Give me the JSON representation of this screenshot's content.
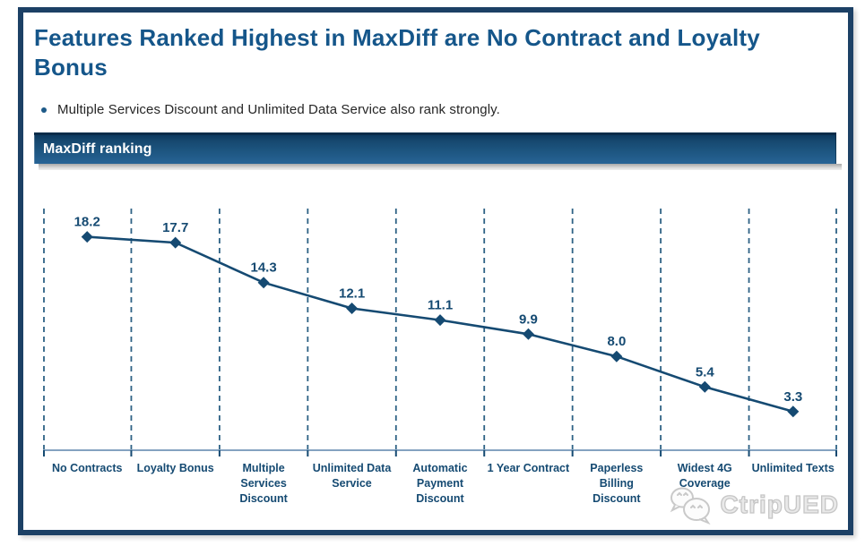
{
  "slide": {
    "title": "Features Ranked Highest in MaxDiff are No Contract and Loyalty Bonus",
    "bullet": "Multiple Services Discount and Unlimited Data Service also rank strongly.",
    "banner_label": "MaxDiff ranking"
  },
  "chart_data": {
    "type": "line",
    "title": "MaxDiff ranking",
    "categories": [
      "No Contracts",
      "Loyalty Bonus",
      "Multiple Services Discount",
      "Unlimited Data Service",
      "Automatic Payment Discount",
      "1 Year Contract",
      "Paperless Billing Discount",
      "Widest 4G Coverage",
      "Unlimited Texts"
    ],
    "values": [
      18.2,
      17.7,
      14.3,
      12.1,
      11.1,
      9.9,
      8.0,
      5.4,
      3.3
    ],
    "value_labels": [
      "18.2",
      "17.7",
      "14.3",
      "12.1",
      "11.1",
      "9.9",
      "8.0",
      "5.4",
      "3.3"
    ],
    "xlabel": "",
    "ylabel": "",
    "ylim": [
      0,
      20
    ],
    "grid": "vertical-dashed",
    "legend": "none",
    "marker": "diamond",
    "data_labels": true
  },
  "watermark": {
    "text": "CtripUED",
    "icon": "chat-bubbles-icon"
  },
  "colors": {
    "frame_border": "#1c4065",
    "title_text": "#15568a",
    "body_text": "#262626",
    "banner_top": "#0d3a60",
    "banner_bottom": "#276395",
    "banner_text": "#ffffff",
    "series_line": "#154a72",
    "data_label_text": "#154a72",
    "gridline_dashed": "#2e6285",
    "axis_line": "#84a2c0",
    "watermark_gray": "#c6c6c6"
  }
}
